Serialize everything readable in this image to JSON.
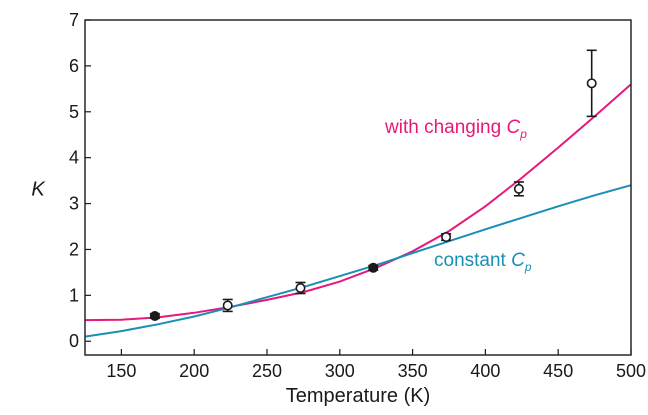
{
  "chart_data": {
    "type": "scatter",
    "xlabel": "Temperature (K)",
    "ylabel": "K",
    "xlim": [
      125,
      500
    ],
    "ylim": [
      -0.3,
      7
    ],
    "xticks": [
      150,
      200,
      250,
      300,
      350,
      400,
      450,
      500
    ],
    "yticks": [
      0,
      1,
      2,
      3,
      4,
      5,
      6,
      7
    ],
    "grid": false,
    "points": [
      {
        "x": 173,
        "y": 0.55,
        "err": 0.05,
        "marker": "filled"
      },
      {
        "x": 223,
        "y": 0.78,
        "err": 0.13,
        "marker": "open"
      },
      {
        "x": 273,
        "y": 1.16,
        "err": 0.12,
        "marker": "open"
      },
      {
        "x": 323,
        "y": 1.6,
        "err": 0.05,
        "marker": "filled"
      },
      {
        "x": 373,
        "y": 2.27,
        "err": 0.07,
        "marker": "open"
      },
      {
        "x": 423,
        "y": 3.32,
        "err": 0.15,
        "marker": "open"
      },
      {
        "x": 473,
        "y": 5.62,
        "err": 0.72,
        "marker": "open"
      }
    ],
    "series": [
      {
        "name_main": "with changing ",
        "name_sym": "C",
        "name_sub": "p",
        "color": "#e6197a",
        "x": [
          125,
          150,
          175,
          200,
          225,
          250,
          275,
          300,
          325,
          350,
          375,
          400,
          425,
          450,
          475,
          500
        ],
        "y": [
          0.46,
          0.47,
          0.52,
          0.62,
          0.75,
          0.9,
          1.07,
          1.3,
          1.6,
          1.96,
          2.4,
          2.94,
          3.56,
          4.22,
          4.9,
          5.6
        ]
      },
      {
        "name_main": "constant ",
        "name_sym": "C",
        "name_sub": "p",
        "color": "#1a8fb5",
        "x": [
          125,
          150,
          175,
          200,
          225,
          250,
          275,
          300,
          325,
          350,
          375,
          400,
          425,
          450,
          475,
          500
        ],
        "y": [
          0.1,
          0.22,
          0.37,
          0.54,
          0.74,
          0.96,
          1.18,
          1.42,
          1.66,
          1.92,
          2.18,
          2.44,
          2.69,
          2.94,
          3.18,
          3.4
        ]
      }
    ]
  }
}
